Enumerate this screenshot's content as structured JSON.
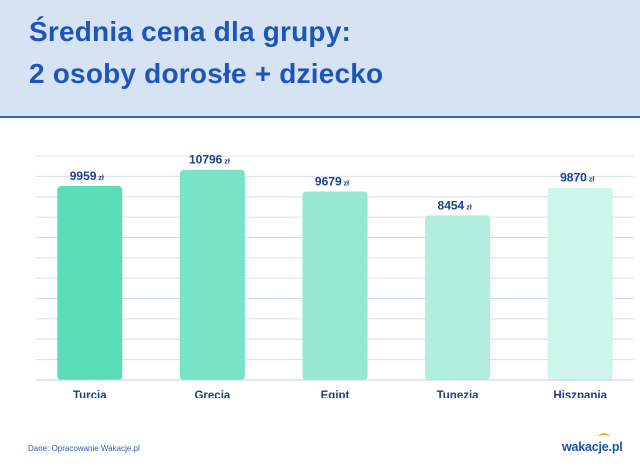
{
  "header": {
    "title_line1": "Średnia cena dla grupy:",
    "title_line2": "2 osoby dorosłe + dziecko"
  },
  "footer": {
    "source": "Dane: Opracowanie Wakacje.pl",
    "logo": "wakacje.pl"
  },
  "colors": {
    "header_bg": "#d6e3f3",
    "title": "#1f55b8",
    "bars": [
      "#5adcb8",
      "#78e3c6",
      "#96e8d2",
      "#b1eede",
      "#cdf5ea"
    ]
  },
  "chart_data": {
    "type": "bar",
    "title": "Średnia cena dla grupy: 2 osoby dorosłe + dziecko",
    "categories": [
      "Turcja",
      "Grecja",
      "Egipt",
      "Tunezja",
      "Hiszpania"
    ],
    "values": [
      9959,
      10796,
      9679,
      8454,
      9870
    ],
    "value_labels": [
      "9959",
      "10796",
      "9679",
      "8454",
      "9870"
    ],
    "unit": "zł",
    "xlabel": "",
    "ylabel": "",
    "ylim": [
      0,
      11500
    ],
    "grid": true,
    "legend": "none"
  }
}
